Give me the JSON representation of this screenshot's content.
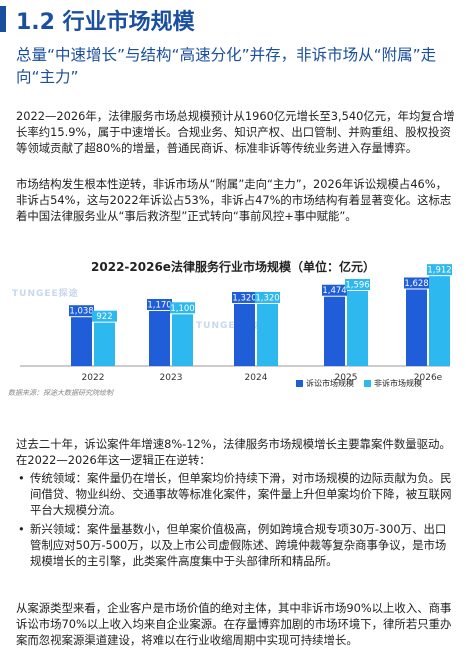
{
  "section": {
    "title": "1.2 行业市场规模"
  },
  "subtitle": "总量“中速增长”与结构“高速分化”并存，非诉市场从“附属”走向“主力”",
  "paragraphs": {
    "p1": "2022—2026年，法律服务市场总规模预计从1960亿元增长至3,540亿元，年均复合增长率约15.9%，属于中速增长。合规业务、知识产权、出口管制、并购重组、股权投资等领域贡献了超80%的增量，普通民商诉、标准非诉等传统业务进入存量博弈。",
    "p2": "市场结构发生根本性逆转，非诉市场从“附属”走向“主力”，2026年诉讼规模占46%，非诉占54%，这与2022年诉讼占53%，非诉占47%的市场结构有着显著变化。这标志着中国法律服务业从“事后救济型”正式转向“事前风控+事中赋能”。",
    "p3": "过去二十年，诉讼案件年增速8%-12%，法律服务市场规模增长主要靠案件数量驱动。在2022—2026年这一逻辑正在逆转：",
    "p4": "从案源类型来看，企业客户是市场价值的绝对主体，其中非诉市场90%以上收入、商事诉讼市场70%以上收入均来自企业案源。在存量博弈加剧的市场环境下，律所若只重办案而忽视案源渠道建设，将难以在行业收缩周期中实现可持续增长。"
  },
  "bullets": [
    "传统领域：案件量仍在增长，但单案均价持续下滑，对市场规模的边际贡献为负。民间借贷、物业纠纷、交通事故等标准化案件，案件量上升但单案均价下降，被互联网平台大规模分流。",
    "新兴领域：案件量基数小，但单案价值极高，例如跨境合规专项30万-300万、出口管制应对50万-500万，以及上市公司虚假陈述、跨境仲裁等复杂商事争议，是市场规模增长的主引擎，此类案件高度集中于头部律所和精品所。"
  ],
  "watermark": {
    "text": "TUNGEE探途"
  },
  "chart_data": {
    "type": "bar",
    "title": "2022-2026e法律服务行业市场规模（单位：亿元）",
    "categories": [
      "2022",
      "2023",
      "2024",
      "2025",
      "2026e"
    ],
    "series": [
      {
        "name": "诉讼市场规模",
        "values": [
          1038,
          1170,
          1320,
          1474,
          1628
        ],
        "color": "#1f5ed8"
      },
      {
        "name": "非诉市场规模",
        "values": [
          922,
          1100,
          1320,
          1596,
          1912
        ],
        "color": "#2eb8f0"
      }
    ],
    "ylim": [
      0,
      2000
    ],
    "legend_position": "bottom-right",
    "grid": false,
    "source": "数据来源：探途大数据研究院绘制"
  }
}
